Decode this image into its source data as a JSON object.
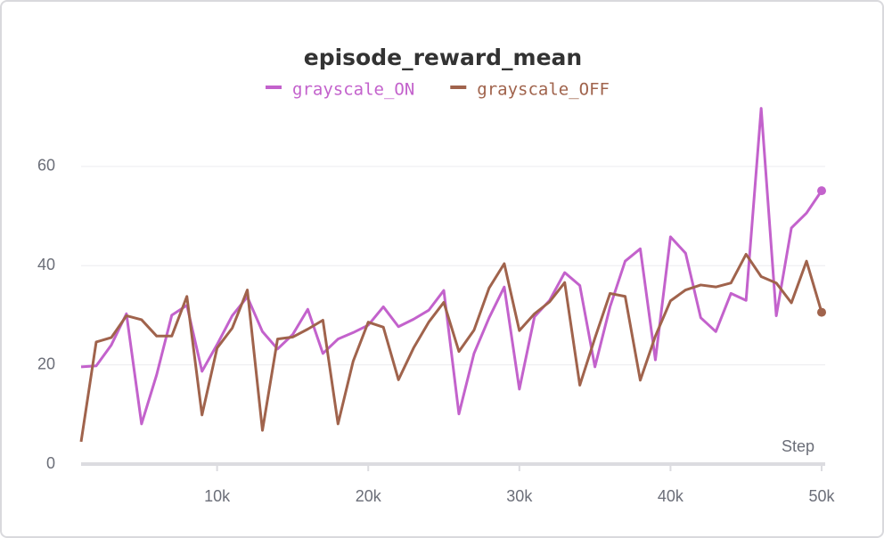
{
  "chart_data": {
    "type": "line",
    "title": "episode_reward_mean",
    "x_label": "Step",
    "x": [
      1000,
      2000,
      3000,
      4000,
      5000,
      6000,
      7000,
      8000,
      9000,
      10000,
      11000,
      12000,
      13000,
      14000,
      15000,
      16000,
      17000,
      18000,
      19000,
      20000,
      21000,
      22000,
      23000,
      24000,
      25000,
      26000,
      27000,
      28000,
      29000,
      30000,
      31000,
      32000,
      33000,
      34000,
      35000,
      36000,
      37000,
      38000,
      39000,
      40000,
      41000,
      42000,
      43000,
      44000,
      45000,
      46000,
      47000,
      48000,
      49000,
      50000
    ],
    "series": [
      {
        "name": "grayscale_ON",
        "color": "#c362cc",
        "values": [
          19.6,
          19.8,
          24,
          30.3,
          8.1,
          18,
          30,
          32,
          18.7,
          24.1,
          29.9,
          33.7,
          26.7,
          23.2,
          26.1,
          31.2,
          22.3,
          25.2,
          26.5,
          28,
          31.7,
          27.7,
          29.2,
          31,
          35,
          10.1,
          22.3,
          29.5,
          35.7,
          15.1,
          29.7,
          33,
          38.6,
          36,
          19.6,
          31.7,
          40.9,
          43.4,
          21,
          45.8,
          42.5,
          29.5,
          26.7,
          34.4,
          33,
          71.7,
          29.9,
          47.6,
          50.6,
          55.1
        ]
      },
      {
        "name": "grayscale_OFF",
        "color": "#a0634c",
        "values": [
          4.5,
          24.6,
          25.5,
          29.9,
          29.1,
          25.8,
          25.8,
          33.8,
          9.9,
          23.4,
          27.4,
          35.1,
          6.8,
          25.2,
          25.6,
          27.2,
          29,
          8.1,
          20.7,
          28.6,
          27.6,
          17,
          23.4,
          28.6,
          32.6,
          22.7,
          27,
          35.5,
          40.4,
          26.9,
          30.3,
          32.7,
          36.6,
          15.9,
          25.4,
          34.4,
          33.8,
          16.9,
          25.8,
          32.9,
          35.1,
          36.1,
          35.7,
          36.5,
          42.3,
          37.8,
          36.5,
          32.5,
          40.9,
          30.6
        ]
      }
    ],
    "xlim": [
      1000,
      50000
    ],
    "xticks": [
      {
        "value": 10000,
        "label": "10k"
      },
      {
        "value": 20000,
        "label": "20k"
      },
      {
        "value": 30000,
        "label": "30k"
      },
      {
        "value": 40000,
        "label": "40k"
      },
      {
        "value": 50000,
        "label": "50k"
      }
    ],
    "ylim": [
      0,
      72
    ],
    "yticks": [
      0,
      20,
      40,
      60
    ],
    "grid": true
  }
}
